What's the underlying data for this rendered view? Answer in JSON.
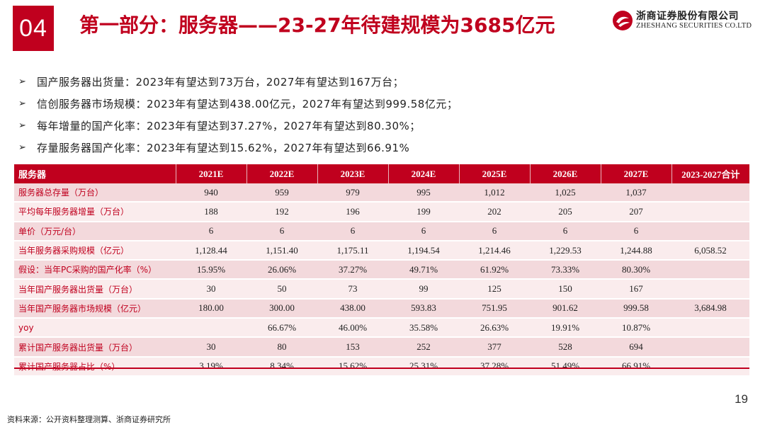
{
  "header": {
    "section_number": "04",
    "title": "第一部分：服务器——23-27年待建规模为3685亿元",
    "logo_cn": "浙商证券股份有限公司",
    "logo_en": "ZHESHANG SECURITIES CO.LTD",
    "brand_color": "#c0001e"
  },
  "bullets": [
    "国产服务器出货量：2023年有望达到73万台，2027年有望达到167万台；",
    "信创服务器市场规模：2023年有望达到438.00亿元，2027年有望达到999.58亿元；",
    "每年增量的国产化率：2023年有望达到37.27%，2027年有望达到80.30%；",
    "存量服务器国产化率：2023年有望达到15.62%，2027年有望达到66.91%"
  ],
  "bullet_icon": "arrow-right-icon",
  "table": {
    "headers": [
      "服务器",
      "2021E",
      "2022E",
      "2023E",
      "2024E",
      "2025E",
      "2026E",
      "2027E",
      "2023-2027合计"
    ],
    "rows": [
      [
        "服务器总存量（万台）",
        "940",
        "959",
        "979",
        "995",
        "1,012",
        "1,025",
        "1,037",
        ""
      ],
      [
        "平均每年服务器增量（万台）",
        "188",
        "192",
        "196",
        "199",
        "202",
        "205",
        "207",
        ""
      ],
      [
        "单价（万元/台）",
        "6",
        "6",
        "6",
        "6",
        "6",
        "6",
        "6",
        ""
      ],
      [
        "当年服务器采购规模（亿元）",
        "1,128.44",
        "1,151.40",
        "1,175.11",
        "1,194.54",
        "1,214.46",
        "1,229.53",
        "1,244.88",
        "6,058.52"
      ],
      [
        "假设：当年PC采购的国产化率（%）",
        "15.95%",
        "26.06%",
        "37.27%",
        "49.71%",
        "61.92%",
        "73.33%",
        "80.30%",
        ""
      ],
      [
        "当年国产服务器出货量（万台）",
        "30",
        "50",
        "73",
        "99",
        "125",
        "150",
        "167",
        ""
      ],
      [
        "当年国产服务器市场规模（亿元）",
        "180.00",
        "300.00",
        "438.00",
        "593.83",
        "751.95",
        "901.62",
        "999.58",
        "3,684.98"
      ],
      [
        "yoy",
        "",
        "66.67%",
        "46.00%",
        "35.58%",
        "26.63%",
        "19.91%",
        "10.87%",
        ""
      ],
      [
        "累计国产服务器出货量（万台）",
        "30",
        "80",
        "153",
        "252",
        "377",
        "528",
        "694",
        ""
      ],
      [
        "累计国产服务器占比（%）",
        "3.19%",
        "8.34%",
        "15.62%",
        "25.31%",
        "37.28%",
        "51.49%",
        "66.91%",
        ""
      ]
    ]
  },
  "page_number": "19",
  "source": "资料来源：公开资料整理测算、浙商证券研究所"
}
